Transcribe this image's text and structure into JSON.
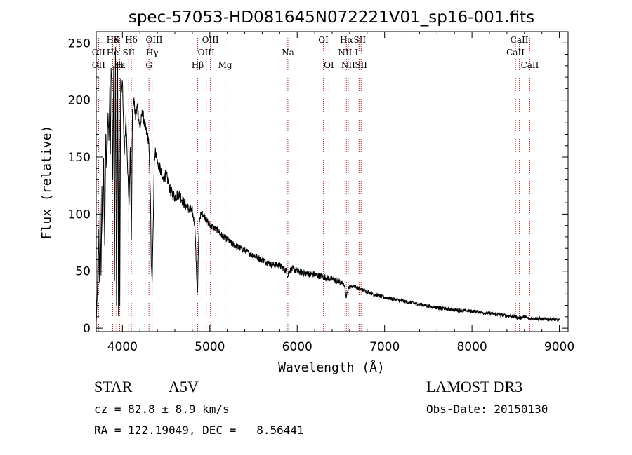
{
  "chart_data": {
    "type": "line",
    "title": "spec-57053-HD081645N072221V01_sp16-001.fits",
    "xlabel": "Wavelength (Å)",
    "ylabel": "Flux (relative)",
    "xlim": [
      3700,
      9100
    ],
    "ylim": [
      -3,
      260
    ],
    "x_ticks": [
      4000,
      5000,
      6000,
      7000,
      8000,
      9000
    ],
    "y_ticks": [
      0,
      50,
      100,
      150,
      200,
      250
    ],
    "grid": false,
    "series": [
      {
        "name": "flux",
        "x": [
          3700,
          3712,
          3725,
          3735,
          3745,
          3755,
          3765,
          3775,
          3785,
          3797,
          3810,
          3820,
          3835,
          3845,
          3855,
          3862,
          3870,
          3880,
          3889,
          3900,
          3910,
          3920,
          3933,
          3945,
          3955,
          3962,
          3970,
          3980,
          3990,
          4000,
          4010,
          4020,
          4040,
          4060,
          4075,
          4090,
          4102,
          4115,
          4130,
          4150,
          4170,
          4200,
          4230,
          4250,
          4265,
          4280,
          4300,
          4320,
          4330,
          4340,
          4350,
          4365,
          4380,
          4400,
          4430,
          4460,
          4500,
          4550,
          4600,
          4650,
          4700,
          4750,
          4800,
          4830,
          4845,
          4855,
          4861,
          4867,
          4880,
          4900,
          4930,
          4960,
          5000,
          5050,
          5100,
          5150,
          5200,
          5250,
          5300,
          5400,
          5500,
          5600,
          5700,
          5800,
          5880,
          5893,
          5905,
          5950,
          6000,
          6100,
          6200,
          6300,
          6400,
          6500,
          6540,
          6556,
          6563,
          6570,
          6590,
          6650,
          6700,
          6800,
          6900,
          7000,
          7200,
          7400,
          7600,
          7800,
          8000,
          8200,
          8400,
          8498,
          8542,
          8600,
          8662,
          8700,
          8800,
          8900,
          9000
        ],
        "y": [
          5,
          30,
          85,
          40,
          110,
          45,
          120,
          80,
          150,
          70,
          170,
          140,
          190,
          165,
          210,
          150,
          225,
          215,
          120,
          230,
          40,
          245,
          10,
          230,
          12,
          205,
          20,
          220,
          205,
          215,
          190,
          150,
          185,
          140,
          105,
          160,
          75,
          190,
          200,
          185,
          195,
          175,
          190,
          180,
          175,
          170,
          165,
          120,
          55,
          40,
          80,
          150,
          155,
          145,
          140,
          130,
          135,
          120,
          115,
          118,
          110,
          105,
          102,
          90,
          55,
          35,
          30,
          60,
          95,
          100,
          100,
          95,
          90,
          88,
          85,
          80,
          78,
          74,
          72,
          68,
          64,
          60,
          56,
          55,
          50,
          45,
          50,
          52,
          50,
          48,
          47,
          45,
          43,
          40,
          38,
          30,
          25,
          32,
          36,
          37,
          35,
          32,
          29,
          27,
          24,
          21,
          18,
          16,
          15,
          13,
          11,
          10,
          9,
          10,
          8,
          9,
          8,
          8,
          7
        ]
      }
    ],
    "lines_top": [
      {
        "label": "Hδ",
        "x": 3889,
        "row": 0
      },
      {
        "label": "K",
        "x": 3934,
        "row": 0
      },
      {
        "label": "Hδ",
        "x": 4102,
        "row": 0
      },
      {
        "label": "OIII",
        "x": 4363,
        "row": 0
      },
      {
        "label": "OIII",
        "x": 5007,
        "row": 0
      },
      {
        "label": "OI",
        "x": 6300,
        "row": 0
      },
      {
        "label": "Hα",
        "x": 6563,
        "row": 0
      },
      {
        "label": "SII",
        "x": 6716,
        "row": 0
      },
      {
        "label": "CaII",
        "x": 8542,
        "row": 0
      },
      {
        "label": "OII",
        "x": 3727,
        "row": 1
      },
      {
        "label": "He",
        "x": 3889,
        "row": 1
      },
      {
        "label": "SII",
        "x": 4072,
        "row": 1
      },
      {
        "label": "Hγ",
        "x": 4340,
        "row": 1
      },
      {
        "label": "OIII",
        "x": 4959,
        "row": 1
      },
      {
        "label": "Na",
        "x": 5893,
        "row": 1
      },
      {
        "label": "NII",
        "x": 6548,
        "row": 1
      },
      {
        "label": "Li",
        "x": 6708,
        "row": 1
      },
      {
        "label": "CaII",
        "x": 8498,
        "row": 1
      },
      {
        "label": "OII",
        "x": 3727,
        "row": 2
      },
      {
        "label": "Hε",
        "x": 3970,
        "row": 2
      },
      {
        "label": "H",
        "x": 3968,
        "row": 2
      },
      {
        "label": "G",
        "x": 4304,
        "row": 2
      },
      {
        "label": "Hβ",
        "x": 4861,
        "row": 2
      },
      {
        "label": "Mg",
        "x": 5175,
        "row": 2
      },
      {
        "label": "OI",
        "x": 6363,
        "row": 2
      },
      {
        "label": "NII",
        "x": 6584,
        "row": 2
      },
      {
        "label": "SII",
        "x": 6731,
        "row": 2
      },
      {
        "label": "CaII",
        "x": 8662,
        "row": 2
      }
    ]
  },
  "info": {
    "object_type": "STAR",
    "subclass": "A5V",
    "survey": "LAMOST DR3",
    "cz": "cz = 82.8 ± 8.9 km/s",
    "obs_date": "Obs-Date: 20150130",
    "radec": "RA = 122.19049, DEC =   8.56441"
  }
}
